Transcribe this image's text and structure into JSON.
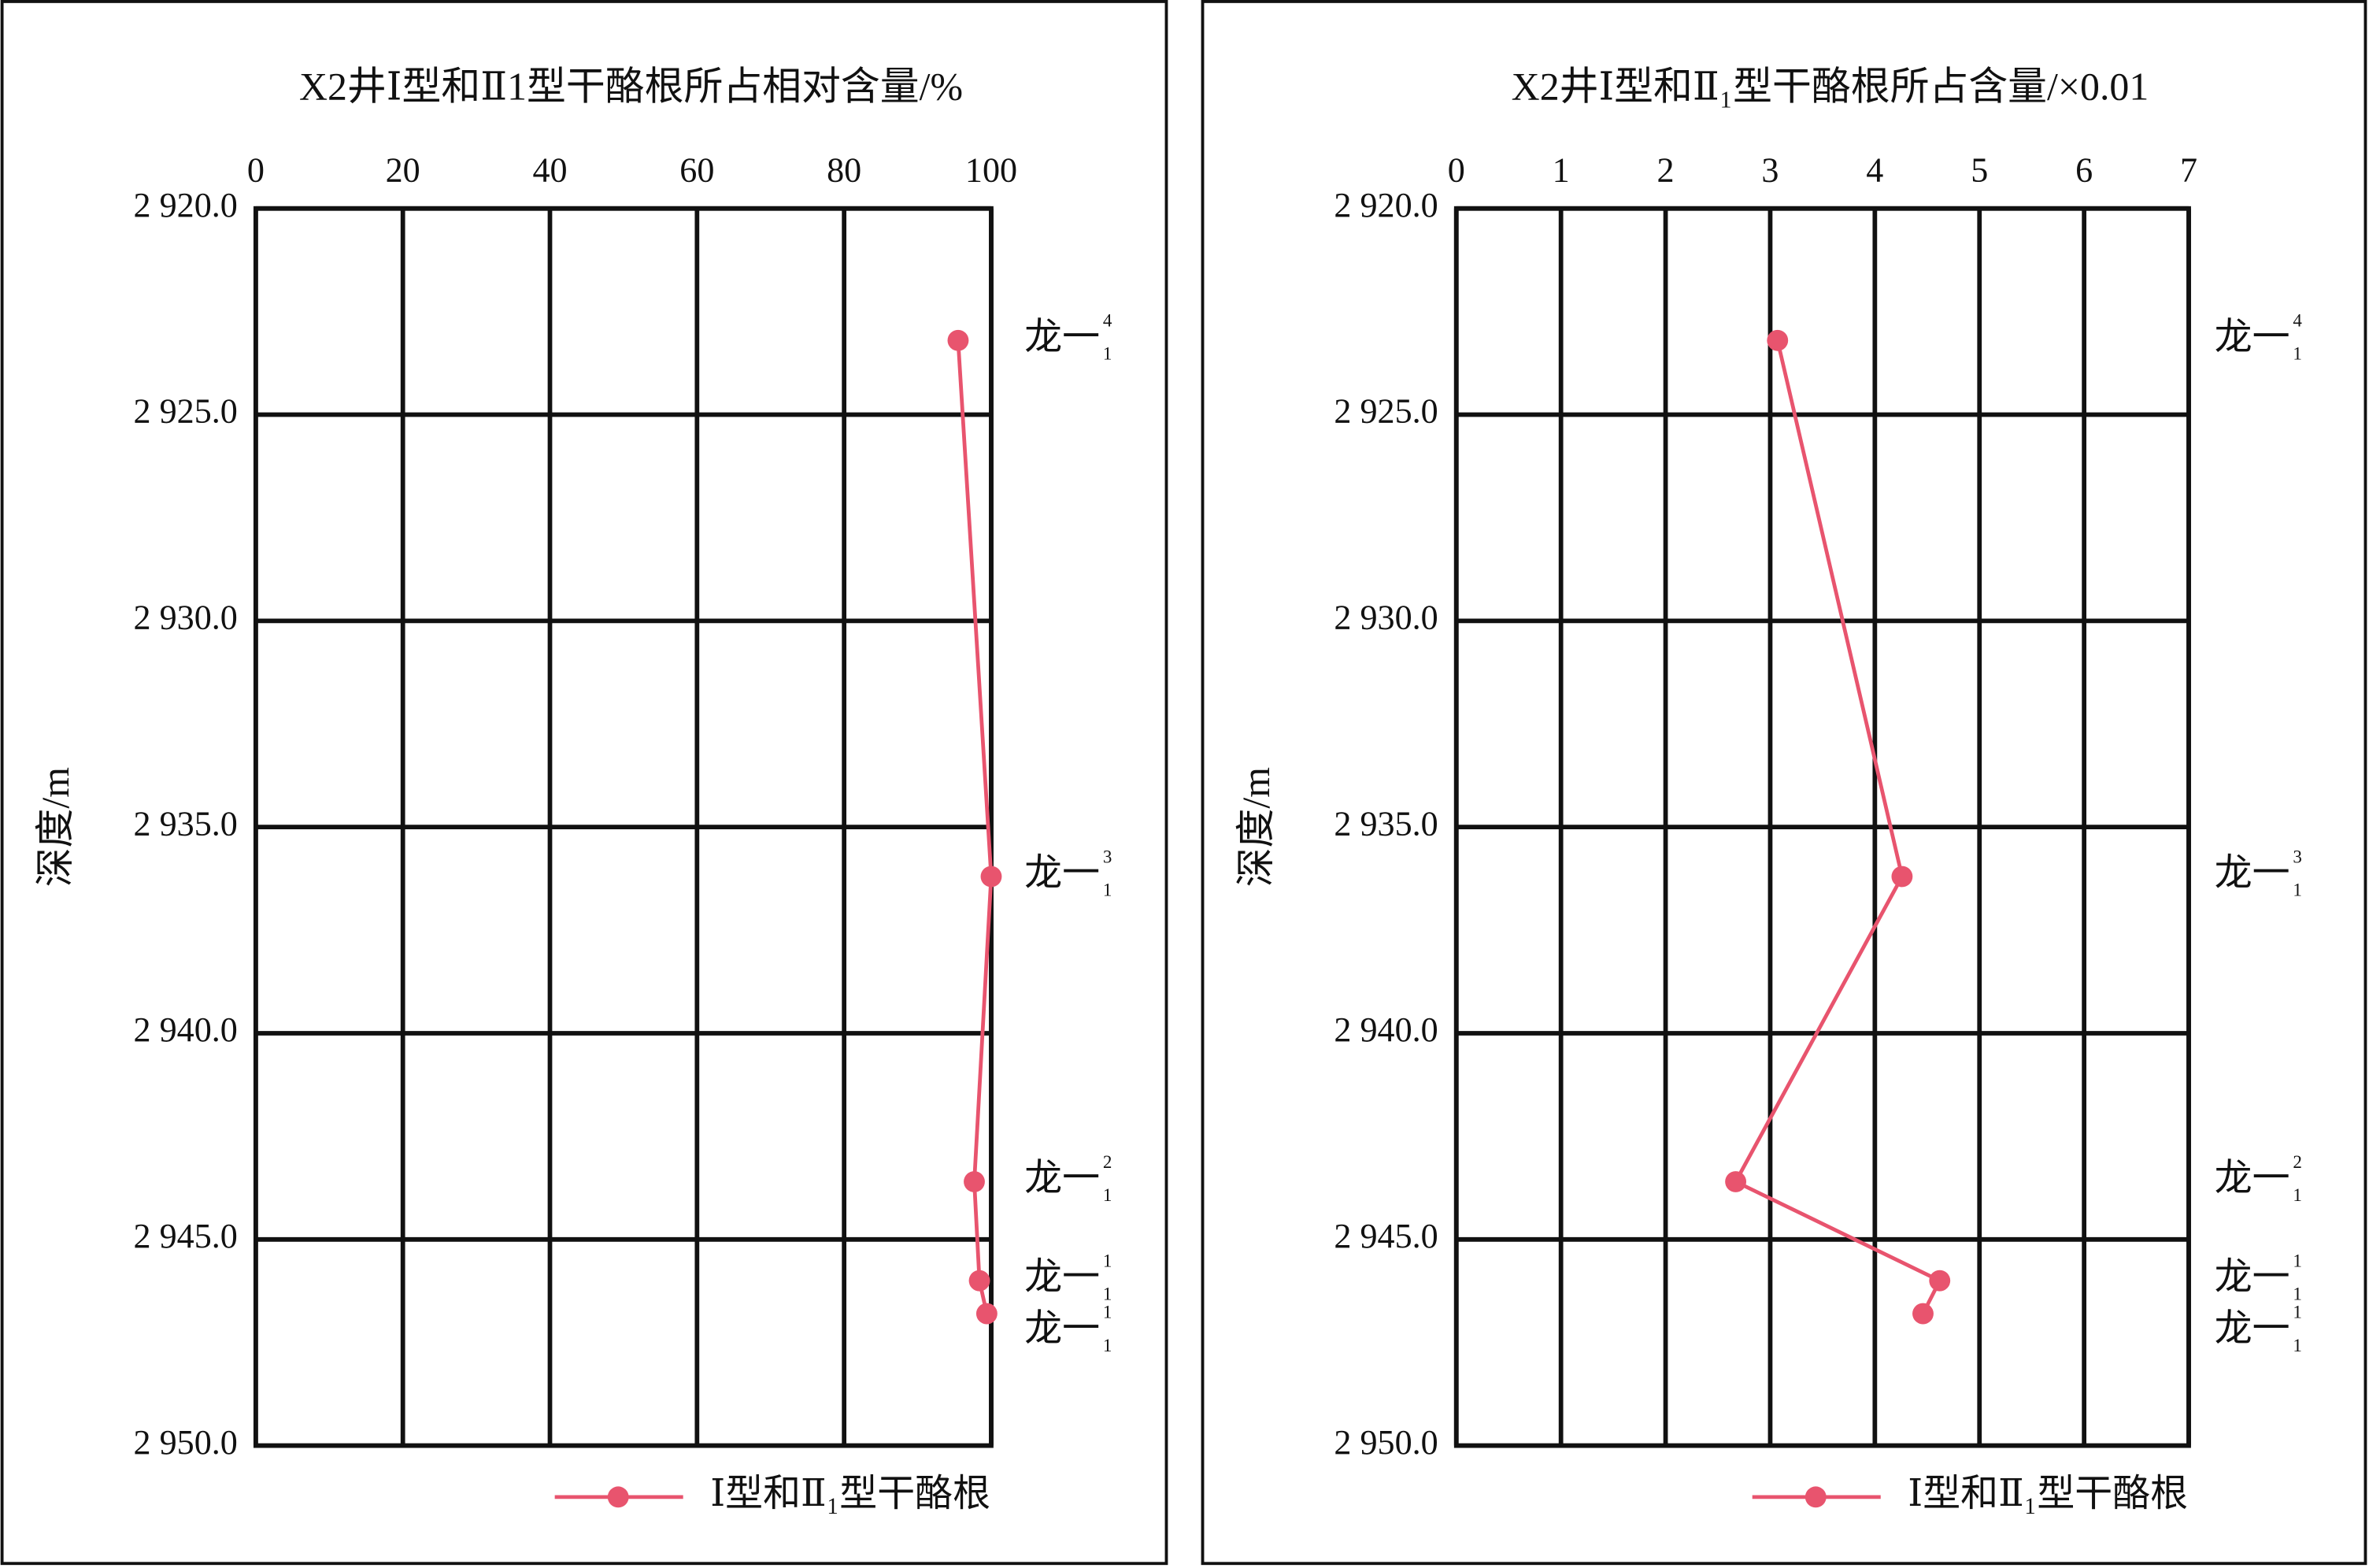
{
  "chart_data": [
    {
      "type": "line",
      "title": "X2井Ⅰ型和Ⅱ1型干酪根所占相对含量/%",
      "ylabel": "深度/m",
      "depth": [
        2923.2,
        2936.2,
        2943.6,
        2946.0,
        2946.8
      ],
      "series": [
        {
          "name": "Ⅰ型和Ⅱ₁型干酪根",
          "color": "#e8546e",
          "values": [
            95.5,
            100,
            97.7,
            98.4,
            99.4
          ]
        }
      ],
      "annotations": [
        {
          "text": "龙一",
          "sup": "4",
          "sub": "1"
        },
        {
          "text": "龙一",
          "sup": "3",
          "sub": "1"
        },
        {
          "text": "龙一",
          "sup": "2",
          "sub": "1"
        },
        {
          "text": "龙一",
          "sup": "1",
          "sub": "1"
        },
        {
          "text": "龙一",
          "sup": "1",
          "sub": "1"
        }
      ],
      "xlim": [
        0,
        100
      ],
      "xticks": [
        0,
        20,
        40,
        60,
        80,
        100
      ],
      "ylim": [
        2920,
        2950
      ],
      "yticks": [
        {
          "value": 2920,
          "label": "2 920.0"
        },
        {
          "value": 2925,
          "label": "2 925.0"
        },
        {
          "value": 2930,
          "label": "2 930.0"
        },
        {
          "value": 2935,
          "label": "2 935.0"
        },
        {
          "value": 2940,
          "label": "2 940.0"
        },
        {
          "value": 2945,
          "label": "2 945.0"
        },
        {
          "value": 2950,
          "label": "2 950.0"
        }
      ],
      "grid": true,
      "legend": "bottom right"
    },
    {
      "type": "line",
      "title": "X2井Ⅰ型和Ⅱ₁型干酪根所占含量/×0.01",
      "ylabel": "深度/m",
      "depth": [
        2923.2,
        2936.2,
        2943.6,
        2946.0,
        2946.8
      ],
      "series": [
        {
          "name": "Ⅰ型和Ⅱ₁型干酪根",
          "color": "#e8546e",
          "values": [
            3.07,
            4.26,
            2.67,
            4.62,
            4.46
          ]
        }
      ],
      "annotations": [
        {
          "text": "龙一",
          "sup": "4",
          "sub": "1"
        },
        {
          "text": "龙一",
          "sup": "3",
          "sub": "1"
        },
        {
          "text": "龙一",
          "sup": "2",
          "sub": "1"
        },
        {
          "text": "龙一",
          "sup": "1",
          "sub": "1"
        },
        {
          "text": "龙一",
          "sup": "1",
          "sub": "1"
        }
      ],
      "xlim": [
        0,
        7
      ],
      "xticks": [
        0,
        1,
        2,
        3,
        4,
        5,
        6,
        7
      ],
      "ylim": [
        2920,
        2950
      ],
      "yticks": [
        {
          "value": 2920,
          "label": "2 920.0"
        },
        {
          "value": 2925,
          "label": "2 925.0"
        },
        {
          "value": 2930,
          "label": "2 930.0"
        },
        {
          "value": 2935,
          "label": "2 935.0"
        },
        {
          "value": 2940,
          "label": "2 940.0"
        },
        {
          "value": 2945,
          "label": "2 945.0"
        },
        {
          "value": 2950,
          "label": "2 950.0"
        }
      ],
      "grid": true,
      "legend": "bottom right"
    }
  ]
}
